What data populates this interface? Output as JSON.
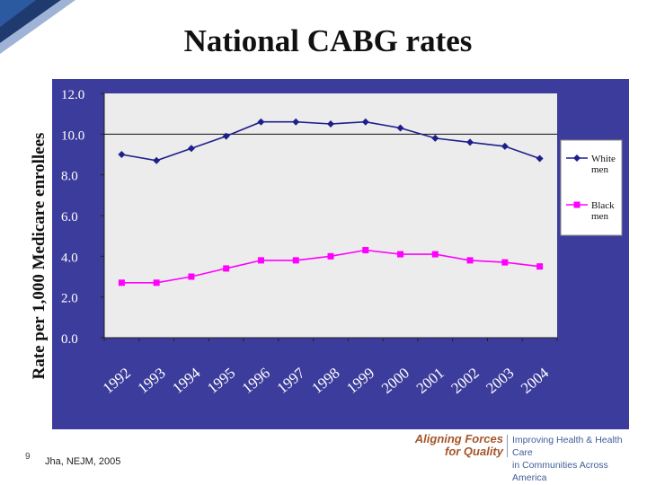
{
  "slide": {
    "title": "National CABG rates",
    "page_number": "9",
    "citation": "Jha, NEJM, 2005",
    "logo": {
      "line1": "Aligning Forces",
      "line2": "for Quality",
      "tag_line1": "Improving Health & Health Care",
      "tag_line2": "in Communities Across America"
    }
  },
  "chart_data": {
    "type": "line",
    "title": "National CABG rates",
    "xlabel": "",
    "ylabel": "Rate per 1,000 Medicare enrollees",
    "ylim": [
      0,
      12
    ],
    "yticks": [
      "0.0",
      "2.0",
      "4.0",
      "6.0",
      "8.0",
      "10.0",
      "12.0"
    ],
    "categories": [
      "1992",
      "1993",
      "1994",
      "1995",
      "1996",
      "1997",
      "1998",
      "1999",
      "2000",
      "2001",
      "2002",
      "2003",
      "2004"
    ],
    "series": [
      {
        "name": "White men",
        "legend_lines": [
          "White",
          "men"
        ],
        "marker": "diamond",
        "color": "#1f1f8c",
        "values": [
          9.0,
          8.7,
          9.3,
          9.9,
          10.6,
          10.6,
          10.5,
          10.6,
          10.3,
          9.8,
          9.6,
          9.4,
          8.8
        ]
      },
      {
        "name": "Black men",
        "legend_lines": [
          "Black",
          "men"
        ],
        "marker": "square",
        "color": "#ff00ff",
        "values": [
          2.7,
          2.7,
          3.0,
          3.4,
          3.8,
          3.8,
          4.0,
          4.3,
          4.1,
          4.1,
          3.8,
          3.7,
          3.5
        ]
      }
    ],
    "grid": false,
    "reference_line": 10,
    "legend_position": "right",
    "colors": {
      "outer_background": "#3c3c9c",
      "plot_area": "#ececec",
      "legend_background": "#ffffff"
    }
  }
}
